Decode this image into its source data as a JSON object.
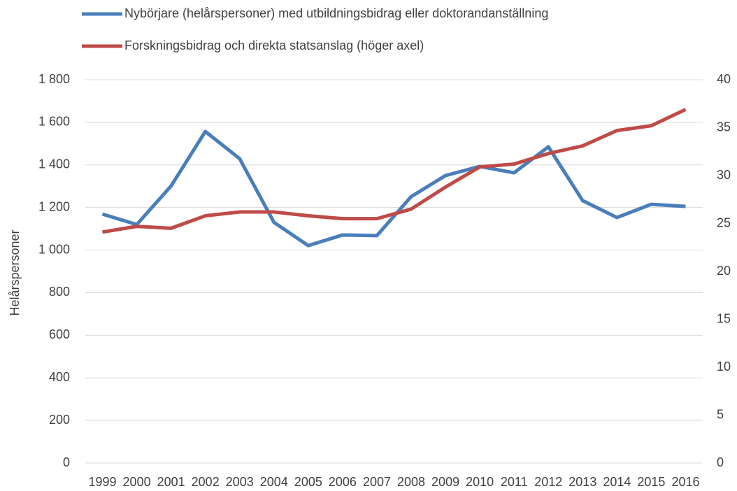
{
  "chart_data": {
    "type": "line",
    "categories": [
      "1999",
      "2000",
      "2001",
      "2002",
      "2003",
      "2004",
      "2005",
      "2006",
      "2007",
      "2008",
      "2009",
      "2010",
      "2011",
      "2012",
      "2013",
      "2014",
      "2015",
      "2016"
    ],
    "series": [
      {
        "name": "Nybörjare (helårspersoner) med utbildningsbidrag eller doktorandanställning",
        "color": "#4a7ebb",
        "values": [
          1169,
          1120,
          1301,
          1557,
          1429,
          1130,
          1021,
          1071,
          1068,
          1251,
          1350,
          1393,
          1363,
          1485,
          1232,
          1153,
          1215,
          1205
        ]
      },
      {
        "name": "Forskningsbidrag och direkta statsanslag (höger axel)",
        "color": "#be4b48",
        "axis": "y2",
        "values": [
          24.1,
          24.7,
          24.5,
          25.8,
          26.2,
          26.2,
          25.8,
          25.5,
          25.5,
          26.5,
          28.8,
          30.9,
          31.2,
          32.3,
          33.1,
          34.7,
          35.2,
          36.9
        ]
      }
    ],
    "ylabel": "Helårspersoner",
    "ylim": [
      0,
      1800
    ],
    "yticks": [
      0,
      200,
      400,
      600,
      800,
      {
        "value": 1000,
        "label": "1 000"
      },
      {
        "value": 1200,
        "label": "1 200"
      },
      {
        "value": 1400,
        "label": "1 400"
      },
      {
        "value": 1600,
        "label": "1 600"
      },
      {
        "value": 1800,
        "label": "1 800"
      }
    ],
    "y2lim": [
      0,
      40
    ],
    "y2ticks": [
      0,
      5,
      10,
      15,
      20,
      25,
      30,
      35,
      40
    ],
    "grid": true
  }
}
